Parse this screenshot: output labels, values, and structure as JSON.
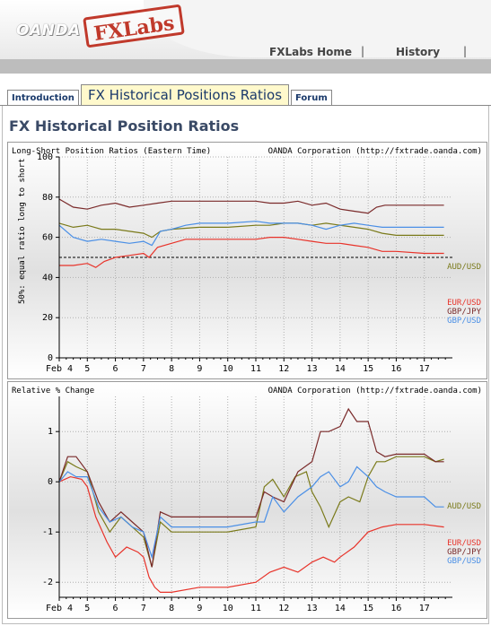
{
  "header": {
    "logo_text": "OANDA",
    "stamp_text": "FXLabs",
    "nav": [
      {
        "label": "FXLabs Home"
      },
      {
        "label": "History"
      }
    ],
    "separator": "|"
  },
  "tabs": {
    "introduction": "Introduction",
    "active": "FX Historical Positions Ratios",
    "forum": "Forum"
  },
  "page_title": "FX Historical Position Ratios",
  "colors": {
    "AUD/USD": "#7a7a1a",
    "EUR/USD": "#e8332a",
    "GBP/JPY": "#7a2a2a",
    "GBP/USD": "#4a8fe6"
  },
  "chart_data": [
    {
      "type": "line",
      "title": "Long-Short Position Ratios (Eastern Time)",
      "source": "OANDA Corporation (http://fxtrade.oanda.com)",
      "ylabel": "50%: equal ratio long to short",
      "ylim": [
        0,
        100
      ],
      "yticks": [
        0,
        20,
        40,
        60,
        80,
        100
      ],
      "xlim": [
        4,
        18
      ],
      "xticks": [
        "Feb 4",
        "5",
        "6",
        "7",
        "8",
        "9",
        "10",
        "11",
        "12",
        "13",
        "14",
        "15",
        "16",
        "17"
      ],
      "reference_line": 50,
      "grid": true,
      "series": [
        {
          "name": "AUD/USD",
          "x": [
            4,
            4.5,
            5,
            5.5,
            6,
            6.5,
            7,
            7.3,
            7.6,
            8,
            9,
            10,
            11,
            11.5,
            12,
            12.5,
            13,
            13.5,
            14,
            14.5,
            15,
            15.5,
            16,
            17,
            17.7
          ],
          "values": [
            67,
            65,
            66,
            64,
            64,
            63,
            62,
            60,
            63,
            64,
            65,
            65,
            66,
            66,
            67,
            67,
            66,
            67,
            66,
            65,
            64,
            62,
            61,
            61,
            61
          ]
        },
        {
          "name": "EUR/USD",
          "x": [
            4,
            4.5,
            5,
            5.3,
            5.6,
            6,
            6.5,
            7,
            7.2,
            7.5,
            8,
            8.5,
            9,
            10,
            11,
            11.5,
            12,
            12.5,
            13,
            13.5,
            14,
            14.5,
            15,
            15.5,
            16,
            17,
            17.7
          ],
          "values": [
            46,
            46,
            47,
            45,
            48,
            50,
            51,
            52,
            50,
            55,
            57,
            59,
            59,
            59,
            59,
            60,
            60,
            59,
            58,
            57,
            57,
            56,
            55,
            53,
            53,
            52,
            52
          ]
        },
        {
          "name": "GBP/JPY",
          "x": [
            4,
            4.5,
            5,
            5.5,
            6,
            6.5,
            7,
            7.5,
            8,
            9,
            10,
            11,
            11.5,
            12,
            12.5,
            13,
            13.5,
            14,
            14.5,
            15,
            15.3,
            15.6,
            16,
            17,
            17.7
          ],
          "values": [
            79,
            75,
            74,
            76,
            77,
            75,
            76,
            77,
            78,
            78,
            78,
            78,
            77,
            77,
            78,
            76,
            77,
            74,
            73,
            72,
            75,
            76,
            76,
            76,
            76
          ]
        },
        {
          "name": "GBP/USD",
          "x": [
            4,
            4.5,
            5,
            5.5,
            6,
            6.5,
            7,
            7.3,
            7.6,
            8,
            8.5,
            9,
            10,
            11,
            11.5,
            12,
            12.5,
            13,
            13.5,
            14,
            14.5,
            15,
            15.5,
            16,
            17,
            17.7
          ],
          "values": [
            66,
            60,
            58,
            59,
            58,
            57,
            58,
            56,
            63,
            64,
            66,
            67,
            67,
            68,
            67,
            67,
            67,
            66,
            64,
            66,
            67,
            66,
            65,
            65,
            65,
            65
          ]
        }
      ]
    },
    {
      "type": "line",
      "title": "Relative % Change",
      "source": "OANDA Corporation (http://fxtrade.oanda.com)",
      "ylim": [
        -2.3,
        1.7
      ],
      "yticks": [
        -2,
        -1,
        0,
        1
      ],
      "xlim": [
        4,
        18
      ],
      "xticks": [
        "Feb 4",
        "5",
        "6",
        "7",
        "8",
        "9",
        "10",
        "11",
        "12",
        "13",
        "14",
        "15",
        "16",
        "17"
      ],
      "grid": true,
      "series": [
        {
          "name": "AUD/USD",
          "x": [
            4,
            4.3,
            4.6,
            5,
            5.4,
            5.8,
            6.2,
            6.6,
            7,
            7.3,
            7.6,
            8,
            9,
            10,
            11,
            11.3,
            11.6,
            12,
            12.4,
            12.8,
            13,
            13.3,
            13.6,
            14,
            14.3,
            14.7,
            15,
            15.3,
            15.6,
            16,
            17,
            17.4,
            17.7
          ],
          "values": [
            0,
            0.4,
            0.3,
            0.2,
            -0.6,
            -1.0,
            -0.7,
            -0.9,
            -1.1,
            -1.7,
            -0.8,
            -1.0,
            -1.0,
            -1.0,
            -0.9,
            -0.1,
            0.05,
            -0.3,
            0.1,
            0.2,
            -0.2,
            -0.5,
            -0.9,
            -0.4,
            -0.3,
            -0.4,
            0.1,
            0.4,
            0.4,
            0.5,
            0.5,
            0.4,
            0.45
          ]
        },
        {
          "name": "EUR/USD",
          "x": [
            4,
            4.4,
            4.8,
            5,
            5.3,
            5.7,
            6,
            6.4,
            6.8,
            7,
            7.2,
            7.4,
            7.6,
            8,
            9,
            10,
            11,
            11.5,
            12,
            12.5,
            13,
            13.4,
            13.8,
            14,
            14.5,
            15,
            15.5,
            16,
            17,
            17.7
          ],
          "values": [
            0,
            0.1,
            0.05,
            -0.1,
            -0.7,
            -1.2,
            -1.5,
            -1.3,
            -1.4,
            -1.5,
            -1.9,
            -2.1,
            -2.2,
            -2.2,
            -2.1,
            -2.1,
            -2.0,
            -1.8,
            -1.7,
            -1.8,
            -1.6,
            -1.5,
            -1.6,
            -1.5,
            -1.3,
            -1.0,
            -0.9,
            -0.85,
            -0.85,
            -0.9
          ]
        },
        {
          "name": "GBP/JPY",
          "x": [
            4,
            4.3,
            4.6,
            5,
            5.4,
            5.8,
            6.2,
            6.6,
            7,
            7.3,
            7.6,
            8,
            9,
            10,
            11,
            11.3,
            11.6,
            12,
            12.5,
            13,
            13.3,
            13.6,
            14,
            14.3,
            14.6,
            15,
            15.3,
            15.6,
            16,
            17,
            17.4,
            17.7
          ],
          "values": [
            0,
            0.5,
            0.5,
            0.2,
            -0.4,
            -0.8,
            -0.6,
            -0.8,
            -1.0,
            -1.7,
            -0.6,
            -0.7,
            -0.7,
            -0.7,
            -0.7,
            -0.2,
            -0.3,
            -0.4,
            0.2,
            0.4,
            1.0,
            1.0,
            1.1,
            1.45,
            1.2,
            1.2,
            0.6,
            0.5,
            0.55,
            0.55,
            0.4,
            0.4
          ]
        },
        {
          "name": "GBP/USD",
          "x": [
            4,
            4.3,
            4.6,
            5,
            5.4,
            5.8,
            6.2,
            6.6,
            7,
            7.3,
            7.6,
            8,
            9,
            10,
            11,
            11.3,
            11.6,
            12,
            12.5,
            13,
            13.3,
            13.6,
            14,
            14.3,
            14.6,
            15,
            15.3,
            15.6,
            16,
            17,
            17.4,
            17.7
          ],
          "values": [
            0,
            0.2,
            0.1,
            0.1,
            -0.5,
            -0.8,
            -0.7,
            -0.9,
            -1.0,
            -1.5,
            -0.7,
            -0.9,
            -0.9,
            -0.9,
            -0.8,
            -0.8,
            -0.3,
            -0.6,
            -0.3,
            -0.1,
            0.1,
            0.2,
            -0.1,
            0.0,
            0.3,
            0.1,
            -0.1,
            -0.2,
            -0.3,
            -0.3,
            -0.5,
            -0.5
          ]
        }
      ]
    }
  ]
}
